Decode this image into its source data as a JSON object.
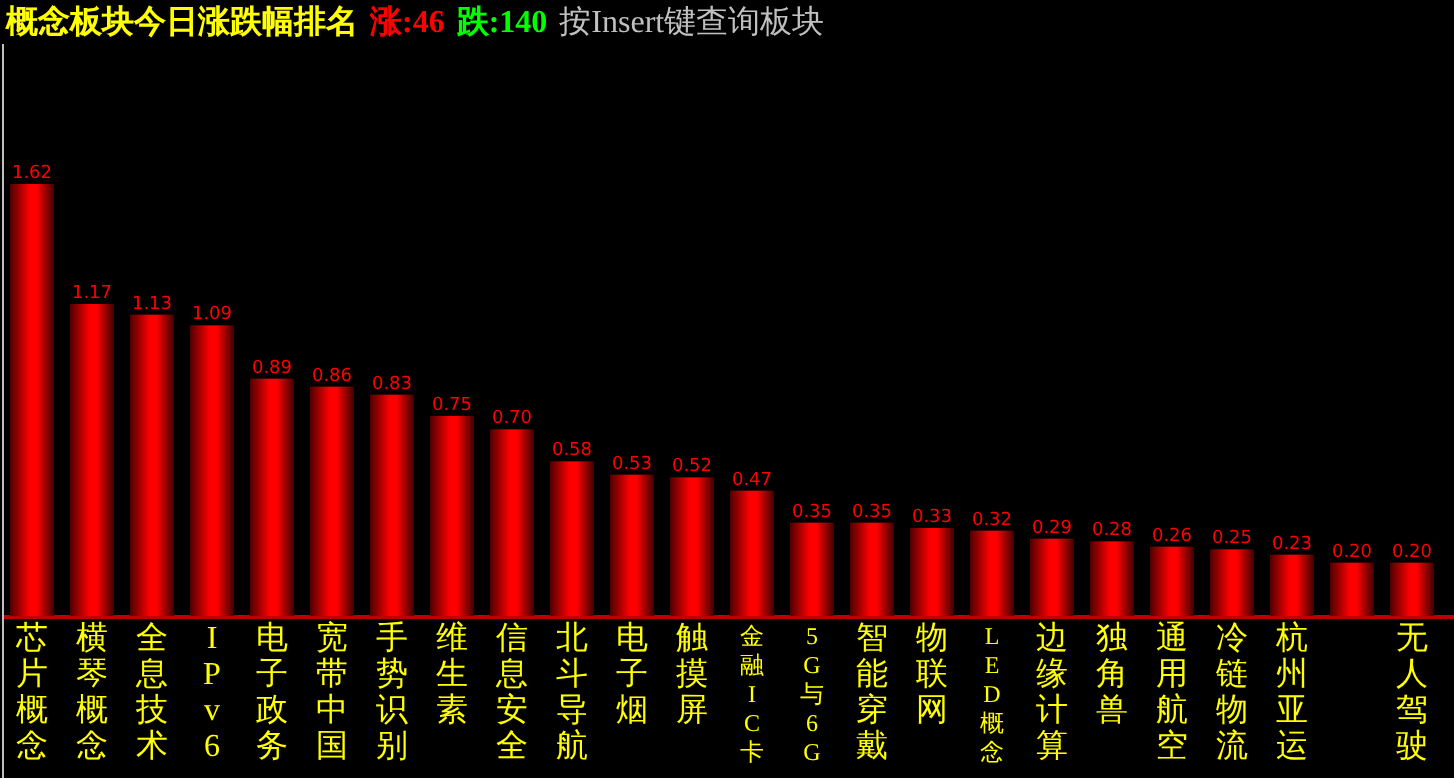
{
  "chart_data": {
    "type": "bar",
    "title": "概念板块今日涨跌幅排名",
    "annotations": [
      "涨:46",
      "跌:140",
      "按Insert键查询板块"
    ],
    "categories": [
      "芯片概念",
      "横琴概念",
      "全息技术",
      "IPv6",
      "电子政务",
      "宽带中国",
      "手势识别",
      "维生素",
      "信息安全",
      "北斗导航",
      "电子烟",
      "触摸屏",
      "金融IC卡",
      "5G与6G",
      "智能穿戴",
      "物联网",
      "LED概念",
      "边缘计算",
      "独角兽",
      "通用航空",
      "冷链物流",
      "杭州亚运",
      null,
      "无人驾驶"
    ],
    "values": [
      1.62,
      1.17,
      1.13,
      1.09,
      0.89,
      0.86,
      0.83,
      0.75,
      0.7,
      0.58,
      0.53,
      0.52,
      0.47,
      0.35,
      0.35,
      0.33,
      0.32,
      0.29,
      0.28,
      0.26,
      0.25,
      0.23,
      0.2,
      0.2
    ],
    "color": "#ff0000",
    "value_labels": [
      "1.62",
      "1.17",
      "1.13",
      "1.09",
      "0.89",
      "0.86",
      "0.83",
      "0.75",
      "0.70",
      "0.58",
      "0.53",
      "0.52",
      "0.47",
      "0.35",
      "0.35",
      "0.33",
      "0.32",
      "0.29",
      "0.28",
      "0.26",
      "0.25",
      "0.23",
      "0.20",
      "0.20"
    ]
  }
}
